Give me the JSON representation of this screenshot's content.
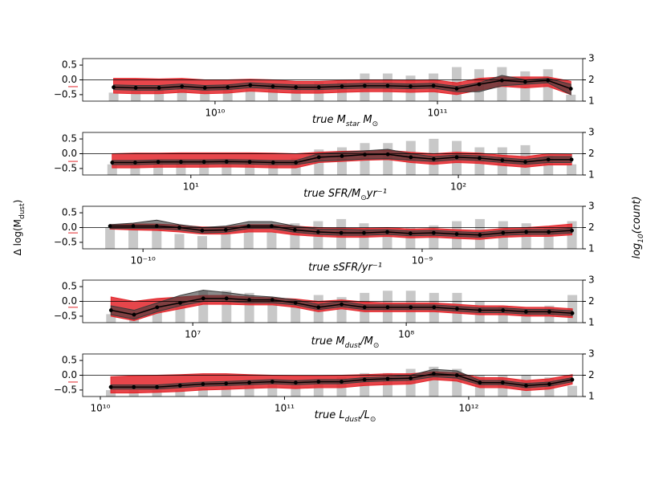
{
  "chart_data": [
    {
      "type": "line",
      "xscale": "log",
      "xlabel": [
        "true M",
        "star",
        " M",
        "⊙"
      ],
      "xlim": [
        2540000000.0,
        450000000000.0
      ],
      "xticks": [
        {
          "value": 10000000000.0,
          "label": "10¹⁰"
        },
        {
          "value": 100000000000.0,
          "label": "10¹¹"
        }
      ],
      "ylim": [
        -0.72,
        0.72
      ],
      "yticks": [
        {
          "value": -0.5,
          "label": "−0.5"
        },
        {
          "value": 0,
          "label": "0.0"
        },
        0.5
      ],
      "y2lim": [
        1,
        3
      ],
      "y2ticks": [
        1,
        2,
        3
      ],
      "hline": 0,
      "ref_value": -0.23,
      "x": [
        3500000000.0,
        4400000000.0,
        5600000000.0,
        7100000000.0,
        9000000000.0,
        11400000000.0,
        14400000000.0,
        18200000000.0,
        23100000000.0,
        29300000000.0,
        37200000000.0,
        47100000000.0,
        59700000000.0,
        75700000000.0,
        96000000000.0,
        122000000000.0,
        154000000000.0,
        195000000000.0,
        248000000000.0,
        314000000000.0,
        398000000000.0
      ],
      "bars": {
        "axis": "y2",
        "color": "#c8c8c8",
        "values": [
          1.4,
          1.5,
          1.6,
          1.7,
          1.7,
          1.8,
          1.6,
          1.8,
          1.8,
          1.9,
          1.9,
          2.3,
          2.3,
          2.2,
          2.3,
          2.6,
          2.5,
          2.6,
          2.4,
          2.5,
          1.3
        ]
      },
      "bands": [
        {
          "color": "#e3262b",
          "low": [
            -0.45,
            -0.47,
            -0.47,
            -0.42,
            -0.47,
            -0.45,
            -0.38,
            -0.42,
            -0.45,
            -0.45,
            -0.42,
            -0.4,
            -0.4,
            -0.42,
            -0.4,
            -0.5,
            -0.35,
            -0.22,
            -0.27,
            -0.22,
            -0.5
          ],
          "high": [
            0.05,
            0.05,
            0.03,
            0.05,
            0,
            0,
            0.02,
            0,
            -0.05,
            -0.05,
            -0.02,
            0,
            0,
            -0.02,
            0,
            -0.1,
            0.05,
            0.1,
            0.1,
            0.1,
            -0.05
          ]
        },
        {
          "color": "#3a3a3a",
          "low": [
            -0.33,
            -0.35,
            -0.35,
            -0.3,
            -0.35,
            -0.33,
            -0.26,
            -0.3,
            -0.33,
            -0.33,
            -0.3,
            -0.28,
            -0.28,
            -0.3,
            -0.28,
            -0.4,
            -0.4,
            -0.2,
            -0.15,
            -0.1,
            -0.5
          ],
          "high": [
            -0.17,
            -0.19,
            -0.19,
            -0.14,
            -0.19,
            -0.17,
            -0.1,
            -0.14,
            -0.17,
            -0.17,
            -0.14,
            -0.12,
            -0.12,
            -0.14,
            -0.12,
            -0.22,
            -0.1,
            0.15,
            0,
            0.05,
            -0.15
          ]
        }
      ],
      "line": {
        "color": "#000000",
        "values": [
          -0.25,
          -0.27,
          -0.27,
          -0.22,
          -0.27,
          -0.25,
          -0.18,
          -0.22,
          -0.25,
          -0.25,
          -0.22,
          -0.2,
          -0.2,
          -0.22,
          -0.2,
          -0.3,
          -0.15,
          -0.02,
          -0.07,
          -0.02,
          -0.3
        ]
      }
    },
    {
      "type": "line",
      "xscale": "log",
      "xlabel": [
        "true SFR/M",
        "⊙",
        "yr⁻¹"
      ],
      "xlim": [
        3.94,
        291.7
      ],
      "xticks": [
        {
          "value": 10,
          "label": "10¹"
        },
        {
          "value": 100,
          "label": "10²"
        }
      ],
      "ylim": [
        -0.72,
        0.72
      ],
      "yticks": [
        {
          "value": -0.5,
          "label": "−0.5"
        },
        {
          "value": 0,
          "label": "0.0"
        },
        0.5
      ],
      "y2lim": [
        1,
        3
      ],
      "y2ticks": [
        1,
        2,
        3
      ],
      "hline": 0,
      "ref_value": -0.26,
      "x": [
        5.08,
        6.19,
        7.55,
        9.18,
        11.2,
        13.6,
        16.6,
        20.3,
        24.7,
        30.1,
        36.7,
        44.7,
        54.5,
        66.4,
        80.9,
        98.6,
        120,
        146,
        178,
        217,
        265
      ],
      "bars": {
        "axis": "y2",
        "color": "#c8c8c8",
        "values": [
          1.5,
          1.6,
          1.7,
          1.7,
          1.7,
          1.6,
          1.7,
          1.7,
          1.8,
          2.2,
          2.3,
          2.5,
          2.5,
          2.6,
          2.7,
          2.6,
          2.3,
          2.3,
          2.4,
          1.9,
          1.5
        ]
      },
      "bands": [
        {
          "color": "#e3262b",
          "low": [
            -0.48,
            -0.48,
            -0.46,
            -0.46,
            -0.46,
            -0.45,
            -0.46,
            -0.48,
            -0.48,
            -0.3,
            -0.26,
            -0.22,
            -0.2,
            -0.3,
            -0.36,
            -0.3,
            -0.33,
            -0.4,
            -0.46,
            -0.38,
            -0.38
          ],
          "high": [
            0,
            0.02,
            0.02,
            0.03,
            0.03,
            0.03,
            0.03,
            0.02,
            0,
            0.05,
            0.08,
            0.1,
            0.12,
            0.05,
            0,
            0.05,
            0.02,
            -0.05,
            -0.1,
            0,
            -0.02
          ]
        },
        {
          "color": "#3a3a3a",
          "low": [
            -0.37,
            -0.37,
            -0.35,
            -0.35,
            -0.35,
            -0.34,
            -0.35,
            -0.37,
            -0.37,
            -0.25,
            -0.22,
            -0.18,
            -0.17,
            -0.22,
            -0.26,
            -0.2,
            -0.23,
            -0.3,
            -0.36,
            -0.3,
            -0.3
          ],
          "high": [
            -0.23,
            -0.23,
            -0.21,
            -0.21,
            -0.21,
            -0.2,
            -0.21,
            -0.23,
            -0.23,
            0,
            0.05,
            0.1,
            0.15,
            0,
            -0.1,
            -0.04,
            -0.07,
            -0.14,
            -0.2,
            -0.1,
            -0.1
          ]
        }
      ],
      "line": {
        "color": "#000000",
        "values": [
          -0.3,
          -0.3,
          -0.28,
          -0.28,
          -0.28,
          -0.27,
          -0.28,
          -0.3,
          -0.3,
          -0.12,
          -0.08,
          -0.03,
          -0.02,
          -0.12,
          -0.18,
          -0.12,
          -0.15,
          -0.22,
          -0.28,
          -0.2,
          -0.2
        ]
      }
    },
    {
      "type": "line",
      "xscale": "log",
      "xlabel": [
        "true sSFR/yr⁻¹"
      ],
      "ylabel": [
        "Δ log(M",
        "dust",
        ")"
      ],
      "y2label": [
        "log",
        "10",
        "(count)"
      ],
      "xlim": [
        6.08e-11,
        3.76e-09
      ],
      "xticks": [
        {
          "value": 1e-10,
          "label": "10⁻¹⁰"
        },
        {
          "value": 1e-09,
          "label": "10⁻⁹"
        }
      ],
      "ylim": [
        -0.72,
        0.72
      ],
      "yticks": [
        {
          "value": -0.5,
          "label": "−0.5"
        },
        {
          "value": 0,
          "label": "0.0"
        },
        0.5
      ],
      "y2lim": [
        1,
        3
      ],
      "y2ticks": [
        1,
        2,
        3
      ],
      "hline": 0,
      "ref_value": -0.18,
      "x": [
        7.62e-11,
        9.23e-11,
        1.12e-10,
        1.35e-10,
        1.63e-10,
        1.98e-10,
        2.39e-10,
        2.89e-10,
        3.5e-10,
        4.24e-10,
        5.13e-10,
        6.19e-10,
        7.5e-10,
        9.08e-10,
        1.1e-09,
        1.33e-09,
        1.61e-09,
        1.95e-09,
        2.36e-09,
        2.84e-09,
        3.44e-09
      ],
      "bars": {
        "axis": "y2",
        "color": "#c8c8c8",
        "values": [
          2.0,
          1.9,
          2.0,
          1.7,
          1.6,
          1.7,
          2.0,
          1.8,
          2.2,
          2.3,
          2.4,
          2.2,
          1.9,
          2.0,
          2.1,
          2.3,
          2.4,
          2.3,
          2.2,
          2.0,
          2.3
        ]
      },
      "bands": [
        {
          "color": "#e3262b",
          "low": [
            -0.05,
            -0.08,
            -0.1,
            -0.15,
            -0.22,
            -0.22,
            -0.15,
            -0.15,
            -0.25,
            -0.3,
            -0.33,
            -0.33,
            -0.3,
            -0.35,
            -0.33,
            -0.37,
            -0.4,
            -0.33,
            -0.3,
            -0.3,
            -0.25
          ],
          "high": [
            0.1,
            0.12,
            0.12,
            0.08,
            0.02,
            0.02,
            0.1,
            0.1,
            0.05,
            0,
            -0.02,
            -0.03,
            0,
            -0.05,
            -0.03,
            -0.07,
            -0.1,
            -0.03,
            0,
            0.05,
            0.12
          ]
        },
        {
          "color": "#3a3a3a",
          "low": [
            -0.03,
            -0.03,
            -0.03,
            -0.08,
            -0.18,
            -0.16,
            -0.03,
            -0.03,
            -0.16,
            -0.23,
            -0.26,
            -0.26,
            -0.23,
            -0.28,
            -0.26,
            -0.3,
            -0.33,
            -0.26,
            -0.23,
            -0.23,
            -0.18
          ],
          "high": [
            0.1,
            0.15,
            0.25,
            0.1,
            0,
            0.05,
            0.2,
            0.2,
            0.05,
            -0.05,
            -0.05,
            -0.08,
            -0.07,
            -0.12,
            -0.1,
            -0.14,
            -0.17,
            -0.1,
            -0.07,
            -0.07,
            -0.02
          ]
        }
      ],
      "line": {
        "color": "#000000",
        "values": [
          0.05,
          0.05,
          0.05,
          0,
          -0.1,
          -0.08,
          0.05,
          0.05,
          -0.08,
          -0.15,
          -0.18,
          -0.18,
          -0.15,
          -0.2,
          -0.18,
          -0.22,
          -0.25,
          -0.18,
          -0.15,
          -0.15,
          -0.1
        ]
      }
    },
    {
      "type": "line",
      "xscale": "log",
      "xlabel": [
        "true M",
        "dust",
        "/M",
        "⊙"
      ],
      "xlim": [
        3050000.0,
        671000000.0
      ],
      "xticks": [
        {
          "value": 10000000.0,
          "label": "10⁷"
        },
        {
          "value": 100000000.0,
          "label": "10⁸"
        }
      ],
      "ylim": [
        -0.72,
        0.72
      ],
      "yticks": [
        {
          "value": -0.5,
          "label": "−0.5"
        },
        {
          "value": 0,
          "label": "0.0"
        },
        0.5
      ],
      "y2lim": [
        1,
        3
      ],
      "y2ticks": [
        1,
        2,
        3
      ],
      "hline": 0,
      "ref_value": -0.2,
      "x": [
        4140000.0,
        5310000.0,
        6810000.0,
        8730000.0,
        11200000.0,
        14400000.0,
        18400000.0,
        23600000.0,
        30300000.0,
        38800000.0,
        49800000.0,
        63800000.0,
        81800000.0,
        105000000.0,
        135000000.0,
        173000000.0,
        221000000.0,
        284000000.0,
        364000000.0,
        468000000.0,
        600000000.0
      ],
      "bars": {
        "axis": "y2",
        "color": "#c8c8c8",
        "values": [
          1.4,
          1.3,
          1.6,
          2.0,
          2.5,
          2.5,
          2.4,
          2.2,
          2.1,
          2.3,
          2.2,
          2.4,
          2.5,
          2.5,
          2.4,
          2.4,
          2.0,
          1.8,
          1.6,
          1.8,
          2.3
        ]
      },
      "bands": [
        {
          "color": "#e3262b",
          "low": [
            -0.5,
            -0.65,
            -0.4,
            -0.25,
            -0.1,
            -0.1,
            -0.12,
            -0.12,
            -0.2,
            -0.35,
            -0.25,
            -0.35,
            -0.35,
            -0.35,
            -0.35,
            -0.4,
            -0.45,
            -0.45,
            -0.5,
            -0.5,
            -0.55
          ],
          "high": [
            0.15,
            0,
            0.1,
            0.15,
            0.2,
            0.2,
            0.15,
            0.12,
            0.08,
            0,
            0.05,
            -0.02,
            -0.05,
            -0.05,
            -0.05,
            -0.1,
            -0.15,
            -0.15,
            -0.2,
            -0.2,
            -0.25
          ]
        },
        {
          "color": "#3a3a3a",
          "low": [
            -0.45,
            -0.6,
            -0.35,
            -0.15,
            0,
            0,
            -0.05,
            -0.05,
            -0.12,
            -0.28,
            -0.18,
            -0.28,
            -0.28,
            -0.28,
            -0.28,
            -0.33,
            -0.38,
            -0.38,
            -0.43,
            -0.43,
            -0.48
          ],
          "high": [
            -0.15,
            -0.3,
            -0.05,
            0.2,
            0.38,
            0.3,
            0.2,
            0.15,
            0.05,
            -0.1,
            0,
            -0.12,
            -0.12,
            -0.12,
            -0.12,
            -0.17,
            -0.22,
            -0.22,
            -0.27,
            -0.27,
            -0.32
          ]
        }
      ],
      "line": {
        "color": "#000000",
        "values": [
          -0.3,
          -0.45,
          -0.2,
          -0.05,
          0.1,
          0.1,
          0.05,
          0.05,
          -0.05,
          -0.2,
          -0.1,
          -0.2,
          -0.2,
          -0.2,
          -0.2,
          -0.25,
          -0.3,
          -0.3,
          -0.35,
          -0.35,
          -0.4
        ]
      }
    },
    {
      "type": "line",
      "xscale": "log",
      "xlabel": [
        "true L",
        "dust",
        "/L",
        "⊙"
      ],
      "xlim": [
        8020000000.0,
        4160000000000.0
      ],
      "xticks": [
        {
          "value": 10000000000.0,
          "label": "10¹⁰"
        },
        {
          "value": 100000000000.0,
          "label": "10¹¹"
        },
        {
          "value": 1000000000000.0,
          "label": "10¹²"
        }
      ],
      "ylim": [
        -0.72,
        0.72
      ],
      "yticks": [
        {
          "value": -0.5,
          "label": "−0.5"
        },
        {
          "value": 0,
          "label": "0.0"
        },
        0.5
      ],
      "y2lim": [
        1,
        3
      ],
      "y2ticks": [
        1,
        2,
        3
      ],
      "hline": 0,
      "ref_value": -0.23,
      "x": [
        11400000000.0,
        15200000000.0,
        20300000000.0,
        27100000000.0,
        36100000000.0,
        48200000000.0,
        64400000000.0,
        85900000000.0,
        115000000000.0,
        153000000000.0,
        204000000000.0,
        272000000000.0,
        363000000000.0,
        484000000000.0,
        646000000000.0,
        863000000000.0,
        1150000000000.0,
        1530000000000.0,
        2050000000000.0,
        2740000000000.0,
        3650000000000.0
      ],
      "bars": {
        "axis": "y2",
        "color": "#c8c8c8",
        "values": [
          1.3,
          1.3,
          1.3,
          1.3,
          1.4,
          1.5,
          1.6,
          1.7,
          1.7,
          1.8,
          1.9,
          2.1,
          2.1,
          2.3,
          2.4,
          2.3,
          2.0,
          2.0,
          2.0,
          1.9,
          1.5
        ]
      },
      "bands": [
        {
          "color": "#e3262b",
          "low": [
            -0.6,
            -0.6,
            -0.58,
            -0.55,
            -0.5,
            -0.48,
            -0.45,
            -0.42,
            -0.45,
            -0.42,
            -0.42,
            -0.35,
            -0.32,
            -0.3,
            -0.15,
            -0.2,
            -0.42,
            -0.42,
            -0.52,
            -0.47,
            -0.3
          ],
          "high": [
            -0.05,
            -0.02,
            0,
            0.02,
            0.05,
            0.05,
            0.02,
            0,
            -0.02,
            -0.02,
            0,
            0.02,
            0.05,
            0.05,
            0.12,
            0.08,
            -0.08,
            -0.08,
            -0.18,
            -0.12,
            0.02
          ]
        },
        {
          "color": "#3a3a3a",
          "low": [
            -0.47,
            -0.47,
            -0.47,
            -0.42,
            -0.37,
            -0.35,
            -0.32,
            -0.29,
            -0.32,
            -0.29,
            -0.29,
            -0.22,
            -0.19,
            -0.17,
            -0.05,
            -0.1,
            -0.32,
            -0.32,
            -0.42,
            -0.37,
            -0.22
          ],
          "high": [
            -0.33,
            -0.33,
            -0.33,
            -0.28,
            -0.23,
            -0.21,
            -0.18,
            -0.15,
            -0.18,
            -0.15,
            -0.15,
            -0.08,
            -0.05,
            0,
            0.2,
            0.15,
            -0.18,
            -0.18,
            -0.28,
            -0.23,
            -0.08
          ]
        }
      ],
      "line": {
        "color": "#000000",
        "values": [
          -0.4,
          -0.4,
          -0.4,
          -0.35,
          -0.3,
          -0.28,
          -0.25,
          -0.22,
          -0.25,
          -0.22,
          -0.22,
          -0.15,
          -0.12,
          -0.1,
          0.05,
          0,
          -0.25,
          -0.25,
          -0.35,
          -0.3,
          -0.15
        ]
      }
    }
  ]
}
